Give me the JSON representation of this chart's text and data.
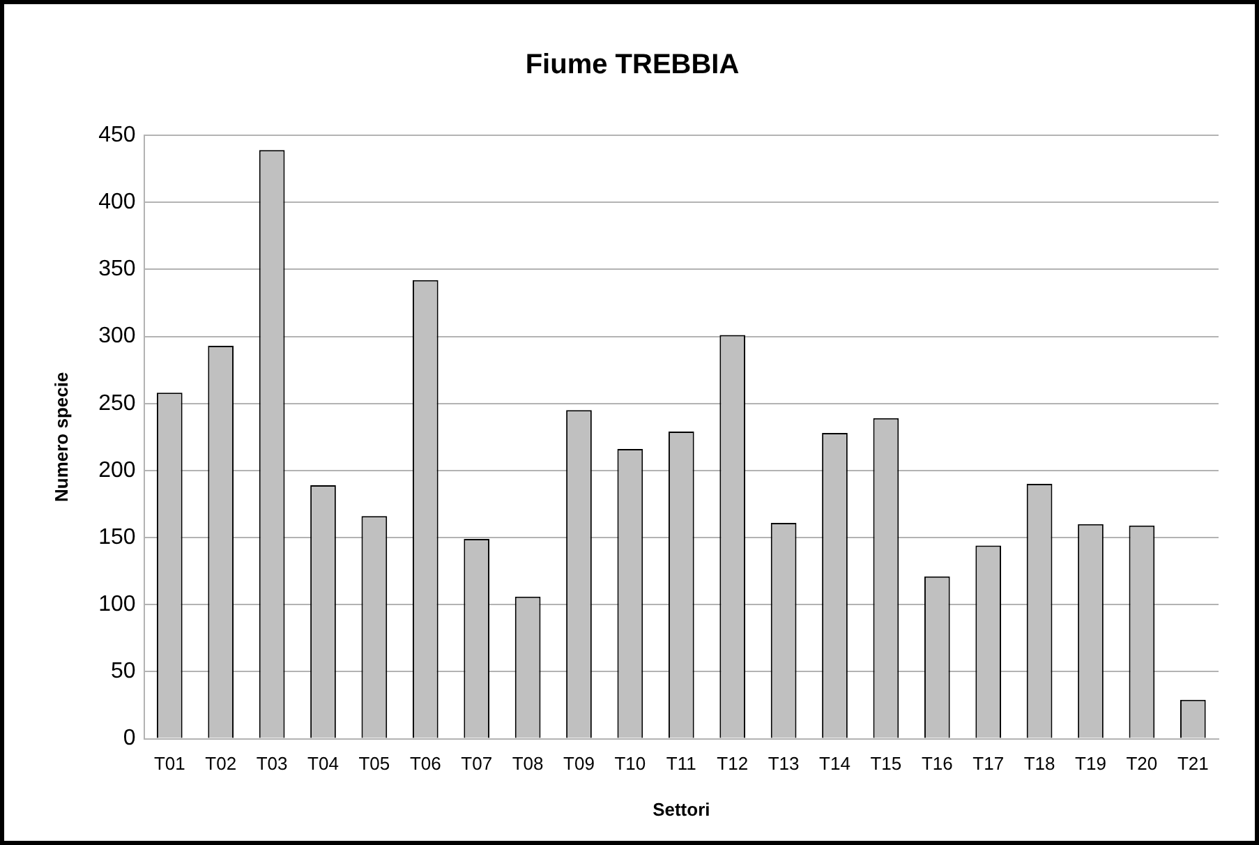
{
  "chart_data": {
    "type": "bar",
    "title": "Fiume TREBBIA",
    "xlabel": "Settori",
    "ylabel": "Numero specie",
    "categories": [
      "T01",
      "T02",
      "T03",
      "T04",
      "T05",
      "T06",
      "T07",
      "T08",
      "T09",
      "T10",
      "T11",
      "T12",
      "T13",
      "T14",
      "T15",
      "T16",
      "T17",
      "T18",
      "T19",
      "T20",
      "T21"
    ],
    "values": [
      258,
      293,
      439,
      189,
      166,
      342,
      149,
      106,
      245,
      216,
      229,
      301,
      161,
      228,
      239,
      121,
      144,
      190,
      160,
      159,
      29
    ],
    "color": "#c0c0c0",
    "ylim": [
      0,
      450
    ],
    "yticks": [
      0,
      50,
      100,
      150,
      200,
      250,
      300,
      350,
      400,
      450
    ],
    "grid": "y",
    "legend": false
  }
}
